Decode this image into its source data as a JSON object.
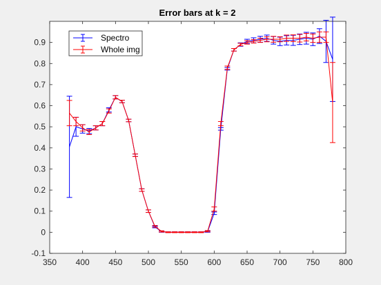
{
  "chart_data": {
    "type": "line",
    "title": "Error bars at k = 2",
    "xlabel": "",
    "ylabel": "",
    "xlim": [
      350,
      800
    ],
    "ylim": [
      -0.1,
      1.0
    ],
    "xticks": [
      350,
      400,
      450,
      500,
      550,
      600,
      650,
      700,
      750,
      800
    ],
    "yticks": [
      -0.1,
      0,
      0.1,
      0.2,
      0.3,
      0.4,
      0.5,
      0.6,
      0.7,
      0.8,
      0.9
    ],
    "grid": false,
    "legend_position": "top-left",
    "series": [
      {
        "name": "Spectro",
        "color": "#0000ff",
        "x": [
          380,
          390,
          400,
          410,
          420,
          430,
          440,
          450,
          460,
          470,
          480,
          490,
          500,
          510,
          520,
          530,
          540,
          550,
          560,
          570,
          580,
          590,
          600,
          610,
          620,
          630,
          640,
          650,
          660,
          670,
          680,
          690,
          700,
          710,
          720,
          730,
          740,
          750,
          760,
          770,
          780
        ],
        "y": [
          0.405,
          0.5,
          0.49,
          0.48,
          0.495,
          0.515,
          0.58,
          0.64,
          0.62,
          0.53,
          0.365,
          0.2,
          0.1,
          0.025,
          0.003,
          0.0,
          0.0,
          0.0,
          0.0,
          0.0,
          0.0,
          0.003,
          0.09,
          0.49,
          0.775,
          0.865,
          0.89,
          0.905,
          0.91,
          0.915,
          0.92,
          0.91,
          0.905,
          0.91,
          0.91,
          0.915,
          0.92,
          0.915,
          0.93,
          0.905,
          0.82
        ],
        "err": [
          0.24,
          0.045,
          0.02,
          0.012,
          0.01,
          0.01,
          0.01,
          0.008,
          0.006,
          0.006,
          0.006,
          0.006,
          0.006,
          0.004,
          0.003,
          0.002,
          0.002,
          0.002,
          0.002,
          0.002,
          0.002,
          0.003,
          0.006,
          0.006,
          0.006,
          0.006,
          0.008,
          0.01,
          0.012,
          0.014,
          0.015,
          0.018,
          0.02,
          0.022,
          0.024,
          0.025,
          0.028,
          0.03,
          0.035,
          0.1,
          0.2
        ]
      },
      {
        "name": "Whole img",
        "color": "#ff0000",
        "x": [
          380,
          390,
          400,
          410,
          420,
          430,
          440,
          450,
          460,
          470,
          480,
          490,
          500,
          510,
          520,
          530,
          540,
          550,
          560,
          570,
          580,
          590,
          600,
          610,
          620,
          630,
          640,
          650,
          660,
          670,
          680,
          690,
          700,
          710,
          720,
          730,
          740,
          750,
          760,
          770,
          780
        ],
        "y": [
          0.565,
          0.525,
          0.495,
          0.475,
          0.495,
          0.515,
          0.575,
          0.64,
          0.62,
          0.53,
          0.365,
          0.2,
          0.1,
          0.028,
          0.004,
          0.0,
          0.0,
          0.0,
          0.0,
          0.0,
          0.0,
          0.005,
          0.11,
          0.515,
          0.78,
          0.865,
          0.89,
          0.9,
          0.905,
          0.91,
          0.915,
          0.915,
          0.915,
          0.92,
          0.92,
          0.92,
          0.925,
          0.92,
          0.925,
          0.925,
          0.615
        ],
        "err": [
          0.06,
          0.02,
          0.015,
          0.012,
          0.01,
          0.01,
          0.01,
          0.008,
          0.006,
          0.006,
          0.006,
          0.006,
          0.006,
          0.004,
          0.003,
          0.002,
          0.002,
          0.002,
          0.002,
          0.002,
          0.002,
          0.003,
          0.01,
          0.01,
          0.008,
          0.006,
          0.006,
          0.008,
          0.008,
          0.01,
          0.012,
          0.014,
          0.012,
          0.015,
          0.016,
          0.018,
          0.018,
          0.02,
          0.025,
          0.025,
          0.19
        ]
      }
    ]
  }
}
